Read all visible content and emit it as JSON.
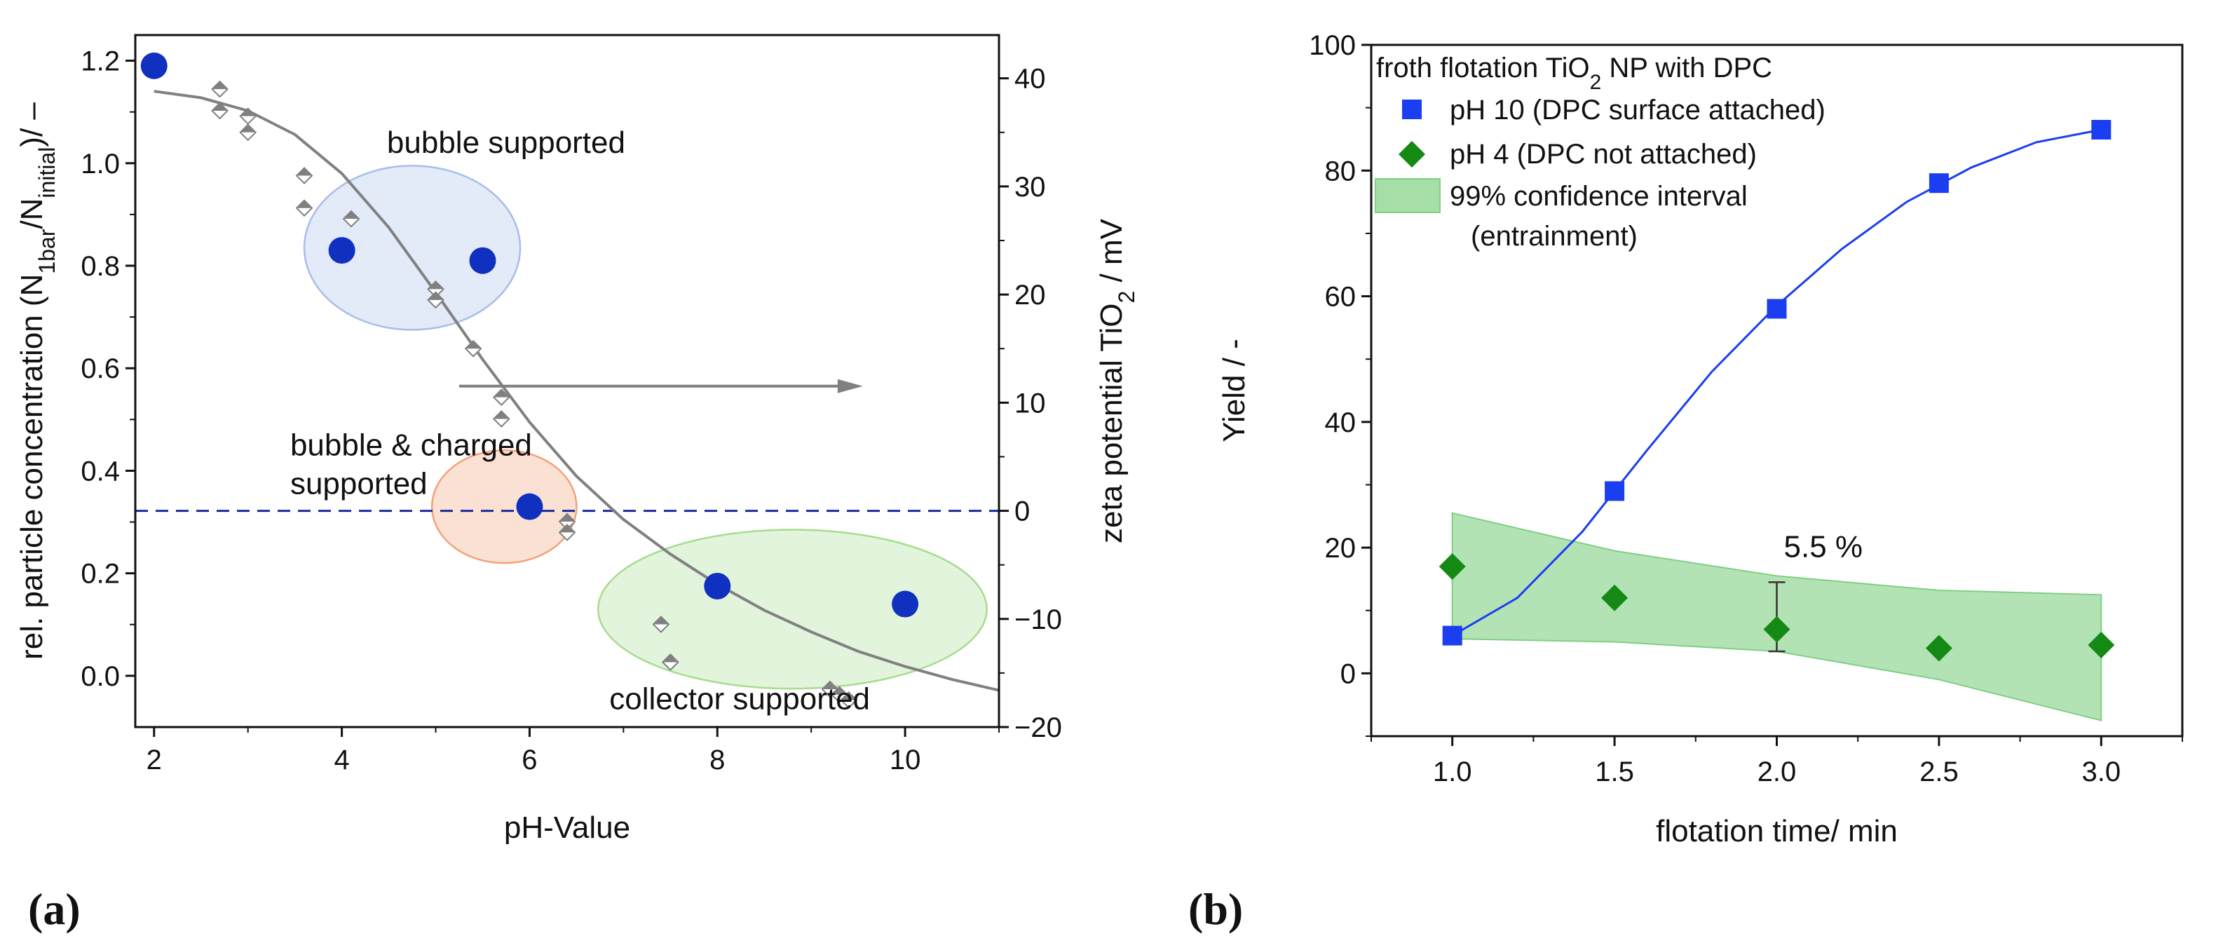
{
  "chart_data": [
    {
      "panel": "(a)",
      "type": "scatter",
      "xlabel": "pH-Value",
      "ylabel": "rel. particle concentration (N1bar/Ninitial)/ –",
      "ylabel_parts": {
        "pre": "rel. particle concentration (N",
        "sub1": "1bar",
        "mid": "/N",
        "sub2": "initial",
        "post": ")/ –"
      },
      "y2label": "zeta potential TiO2 / mV",
      "y2label_parts": {
        "pre": "zeta potential TiO",
        "sub": "2",
        "post": " / mV"
      },
      "xlim": [
        1.8,
        11.0
      ],
      "ylim": [
        -0.1,
        1.25
      ],
      "y2lim": [
        -20,
        44
      ],
      "xticks": [
        2,
        4,
        6,
        8,
        10
      ],
      "yticks": [
        0.0,
        0.2,
        0.4,
        0.6,
        0.8,
        1.0,
        1.2
      ],
      "y2ticks": [
        -20,
        -10,
        0,
        10,
        20,
        30,
        40
      ],
      "xtick_labels": [
        "2",
        "4",
        "6",
        "8",
        "10"
      ],
      "ytick_labels": [
        "0.0",
        "0.2",
        "0.4",
        "0.6",
        "0.8",
        "1.0",
        "1.2"
      ],
      "y2tick_labels": [
        "−20",
        "−10",
        "0",
        "10",
        "20",
        "30",
        "40"
      ],
      "series": [
        {
          "name": "particle concentration",
          "axis": "left",
          "marker": "circle",
          "color": "#1030c0",
          "x": [
            2,
            4,
            5.5,
            6,
            8,
            10
          ],
          "y": [
            1.19,
            0.83,
            0.81,
            0.33,
            0.175,
            0.14
          ]
        },
        {
          "name": "zeta potential",
          "axis": "right",
          "marker": "diamond",
          "color": "#808080",
          "x": [
            2.7,
            2.7,
            3.0,
            3.0,
            3.6,
            3.6,
            4.1,
            5.0,
            5.0,
            5.4,
            5.7,
            5.7,
            6.4,
            6.4,
            7.4,
            7.5,
            7.5,
            9.2,
            9.3,
            9.4
          ],
          "y": [
            39,
            37,
            36.5,
            35,
            31,
            28,
            27,
            20.5,
            19.5,
            15,
            10.5,
            8.5,
            -1,
            -2,
            -10.5,
            -14,
            -14,
            -16.5,
            -17,
            -17.5
          ]
        },
        {
          "name": "zeta fit",
          "type": "line",
          "axis": "right",
          "color": "#808080",
          "x": [
            2.0,
            2.5,
            3.0,
            3.5,
            4.0,
            4.5,
            5.0,
            5.5,
            6.0,
            6.5,
            7.0,
            7.5,
            8.0,
            8.5,
            9.0,
            9.5,
            10.0,
            10.5,
            11.0
          ],
          "y": [
            38.8,
            38.2,
            37.0,
            34.8,
            31.2,
            26.2,
            20.2,
            14.0,
            8.2,
            3.2,
            -0.8,
            -4.0,
            -6.8,
            -9.2,
            -11.2,
            -13.0,
            -14.4,
            -15.6,
            -16.6
          ]
        }
      ],
      "reference_line": {
        "axis": "right",
        "y": 0,
        "style": "dashed",
        "color": "#1a2a9a"
      },
      "regions": [
        {
          "name": "bubble supported",
          "cx": 4.75,
          "cy": 0.835,
          "rx": 1.15,
          "ry": 0.16,
          "color": "#a9bde9"
        },
        {
          "name": "bubble & charged supported",
          "cx": 5.73,
          "cy": 0.33,
          "rx": 0.77,
          "ry": 0.11,
          "color": "#f3a27a"
        },
        {
          "name": "collector supported",
          "cx": 8.8,
          "cy": 0.13,
          "rx": 2.07,
          "ry": 0.155,
          "color": "#a6dd8f"
        }
      ],
      "arrow": {
        "from": [
          5.25,
          0.565
        ],
        "to": [
          9.55,
          0.565
        ],
        "color": "#808080"
      },
      "annotations": [
        {
          "text": "bubble supported",
          "x": 5.75,
          "y": 1.02
        },
        {
          "text": "bubble & charged",
          "x": 3.45,
          "y": 0.43
        },
        {
          "text": "supported",
          "x": 3.45,
          "y": 0.355
        },
        {
          "text": "collector supported",
          "x": 6.85,
          "y": -0.065
        }
      ]
    },
    {
      "panel": "(b)",
      "type": "scatter",
      "xlabel": "flotation time/ min",
      "ylabel": "Yield / -",
      "xlim": [
        0.75,
        3.25
      ],
      "ylim": [
        -10,
        100
      ],
      "xticks": [
        1.0,
        1.5,
        2.0,
        2.5,
        3.0
      ],
      "yticks": [
        0,
        20,
        40,
        60,
        80,
        100
      ],
      "xtick_labels": [
        "1.0",
        "1.5",
        "2.0",
        "2.5",
        "3.0"
      ],
      "ytick_labels": [
        "0",
        "20",
        "40",
        "60",
        "80",
        "100"
      ],
      "legend": {
        "position": "top-left",
        "title": "froth flotation TiO2 NP with DPC",
        "title_parts": {
          "pre": "froth flotation TiO",
          "sub": "2",
          "post": " NP with DPC"
        },
        "entries": [
          "pH 10 (DPC surface attached)",
          "pH  4  (DPC not attached)",
          "99% confidence interval",
          "(entrainment)"
        ]
      },
      "series": [
        {
          "name": "pH 10 (DPC surface attached)",
          "marker": "square",
          "color": "#1a3ef0",
          "x": [
            1.0,
            1.5,
            2.0,
            2.5,
            3.0
          ],
          "y": [
            6,
            29,
            58,
            78,
            86.5
          ]
        },
        {
          "name": "pH  4  (DPC not attached)",
          "marker": "diamond",
          "color": "#148a14",
          "x": [
            1.0,
            1.5,
            2.0,
            2.5,
            3.0
          ],
          "y": [
            17,
            12,
            7,
            4,
            4.5
          ]
        },
        {
          "name": "pH 10 fit",
          "type": "line",
          "color": "#1a3ef0",
          "x": [
            1.0,
            1.2,
            1.4,
            1.6,
            1.8,
            2.0,
            2.2,
            2.4,
            2.6,
            2.8,
            3.0
          ],
          "y": [
            6,
            12,
            22.5,
            35.5,
            48,
            58.5,
            67.5,
            75,
            80.5,
            84.5,
            86.5
          ]
        }
      ],
      "confidence_band": {
        "name": "99% confidence interval",
        "color": "#a6dea8",
        "x": [
          1.0,
          1.5,
          2.0,
          2.5,
          3.0
        ],
        "upper": [
          25.5,
          19.5,
          15.5,
          13.2,
          12.5
        ],
        "lower": [
          5.5,
          5.0,
          3.5,
          -1.0,
          -7.5
        ]
      },
      "error_bar": {
        "x": 2.0,
        "y": 7,
        "low": 3.5,
        "high": 14.5
      },
      "annotations": [
        {
          "text": "5.5 %",
          "x": 2.0,
          "y": 18.5
        }
      ]
    }
  ]
}
